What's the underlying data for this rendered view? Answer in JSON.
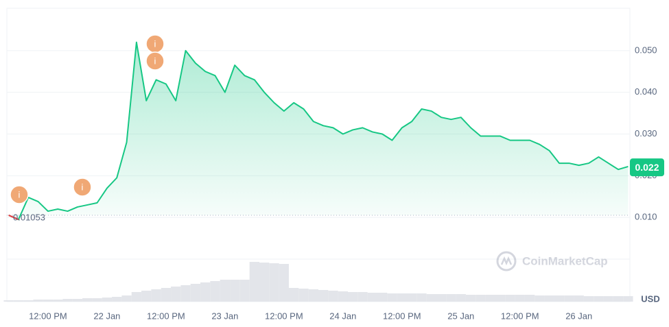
{
  "chart_data": {
    "type": "line",
    "categories": [
      null,
      null,
      null,
      null,
      "12:00 PM",
      null,
      null,
      null,
      null,
      null,
      "22 Jan",
      null,
      null,
      null,
      null,
      null,
      "12:00 PM",
      null,
      null,
      null,
      null,
      null,
      "23 Jan",
      null,
      null,
      null,
      null,
      null,
      "12:00 PM",
      null,
      null,
      null,
      null,
      null,
      "24 Jan",
      null,
      null,
      null,
      null,
      null,
      "12:00 PM",
      null,
      null,
      null,
      null,
      null,
      "25 Jan",
      null,
      null,
      null,
      null,
      null,
      "12:00 PM",
      null,
      null,
      null,
      null,
      null,
      "26 Jan",
      null,
      null,
      null,
      null,
      null
    ],
    "series": [
      {
        "color": "#16c784",
        "down_color": "#ea3943",
        "values": [
          0.01053,
          0.0095,
          0.0148,
          0.0138,
          0.0115,
          0.012,
          0.0115,
          0.0125,
          0.013,
          0.0135,
          0.017,
          0.0195,
          0.028,
          0.052,
          0.038,
          0.043,
          0.042,
          0.038,
          0.05,
          0.047,
          0.045,
          0.044,
          0.04,
          0.0465,
          0.044,
          0.043,
          0.04,
          0.0375,
          0.0355,
          0.0375,
          0.036,
          0.033,
          0.032,
          0.0315,
          0.03,
          0.031,
          0.0315,
          0.0305,
          0.03,
          0.0285,
          0.0315,
          0.033,
          0.036,
          0.0355,
          0.034,
          0.0335,
          0.034,
          0.0315,
          0.0295,
          0.0295,
          0.0295,
          0.0285,
          0.0285,
          0.0285,
          0.0275,
          0.026,
          0.023,
          0.023,
          0.0225,
          0.023,
          0.0245,
          0.023,
          0.0215,
          0.0222
        ]
      }
    ],
    "volume": {
      "color": "#e3e5ea",
      "values": [
        2,
        2,
        2,
        3,
        3,
        3,
        4,
        4,
        5,
        5,
        6,
        7,
        9,
        14,
        16,
        18,
        20,
        22,
        24,
        26,
        28,
        30,
        32,
        32,
        32,
        58,
        57,
        56,
        55,
        20,
        19,
        18,
        17,
        16,
        15,
        14,
        14,
        13,
        13,
        12,
        12,
        12,
        12,
        11,
        11,
        11,
        11,
        10,
        10,
        10,
        10,
        10,
        10,
        10,
        9,
        9,
        9,
        9,
        9,
        8,
        8,
        8,
        8,
        8
      ],
      "vlim": [
        0,
        100
      ]
    },
    "ylim": [
      0,
      0.06
    ],
    "yticks": [
      {
        "value": 0.01,
        "label": "0.010"
      },
      {
        "value": 0.02,
        "label": "0.020"
      },
      {
        "value": 0.03,
        "label": "0.030"
      },
      {
        "value": 0.04,
        "label": "0.040"
      },
      {
        "value": 0.05,
        "label": "0.050"
      }
    ],
    "grid": true,
    "start_value": 0.01053,
    "current_value": 0.022,
    "unit": "USD",
    "watermark": "CoinMarketCap",
    "annotations": [
      "i",
      "i",
      "i",
      "i"
    ]
  }
}
